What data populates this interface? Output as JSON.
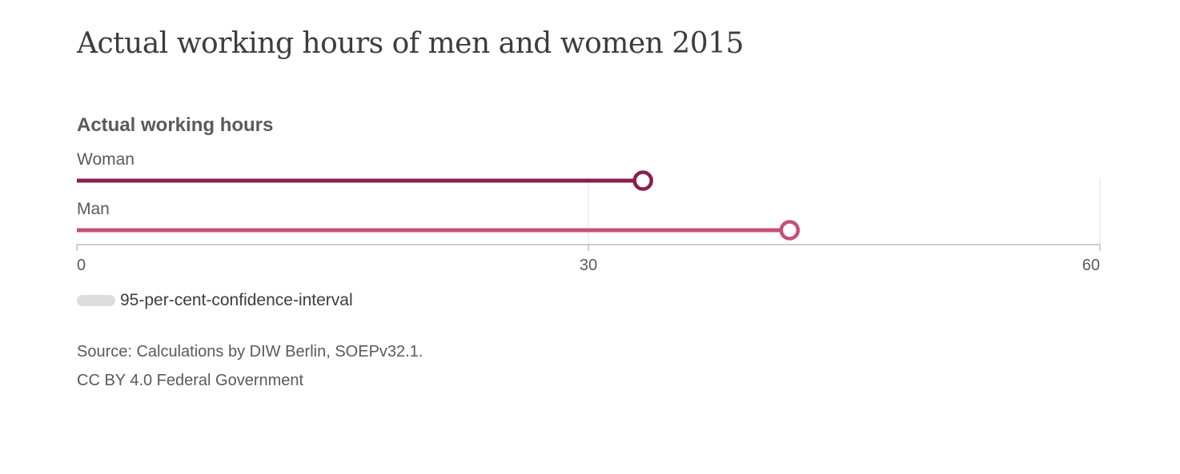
{
  "title": "Actual working hours of men and women 2015",
  "chart_data": {
    "type": "dot-bar",
    "title": "Actual working hours of men and women 2015",
    "subtitle": "Actual working hours",
    "categories": [
      "Woman",
      "Man"
    ],
    "values": [
      33.2,
      41.8
    ],
    "colors": [
      "#8a1f4f",
      "#c4507a"
    ],
    "xlim": [
      0,
      60
    ],
    "xticks": [
      0,
      30,
      60
    ],
    "grid": true,
    "legend": {
      "label": "95-per-cent-confidence-interval",
      "color": "#dcdcdc",
      "placement": "bottom-left"
    }
  },
  "source": {
    "line1": "Source: Calculations by DIW Berlin, SOEPv32.1.",
    "line2": "CC BY 4.0 Federal Government"
  }
}
